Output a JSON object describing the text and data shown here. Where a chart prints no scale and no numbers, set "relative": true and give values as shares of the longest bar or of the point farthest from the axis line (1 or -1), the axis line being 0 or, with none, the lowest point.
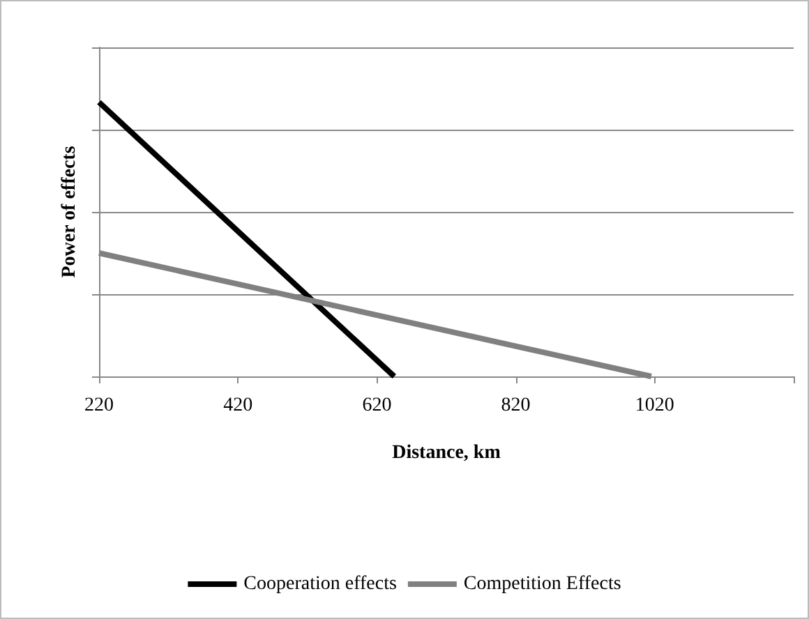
{
  "chart_data": {
    "type": "line",
    "relative": true,
    "xlabel": "Distance, km",
    "ylabel": "Power of effects",
    "xlim": [
      220,
      1220
    ],
    "xticks": [
      220,
      420,
      620,
      820,
      1020
    ],
    "grid": "y",
    "legend": "bottom",
    "marker": "none",
    "line_style": "solid",
    "series": [
      {
        "name": "Cooperation effects",
        "color": "#000000",
        "x": [
          220,
          645
        ],
        "values": [
          1,
          0
        ]
      },
      {
        "name": "Competition Effects",
        "color": "#808080",
        "x": [
          220,
          1015
        ],
        "values": [
          0.45,
          0
        ]
      }
    ]
  }
}
